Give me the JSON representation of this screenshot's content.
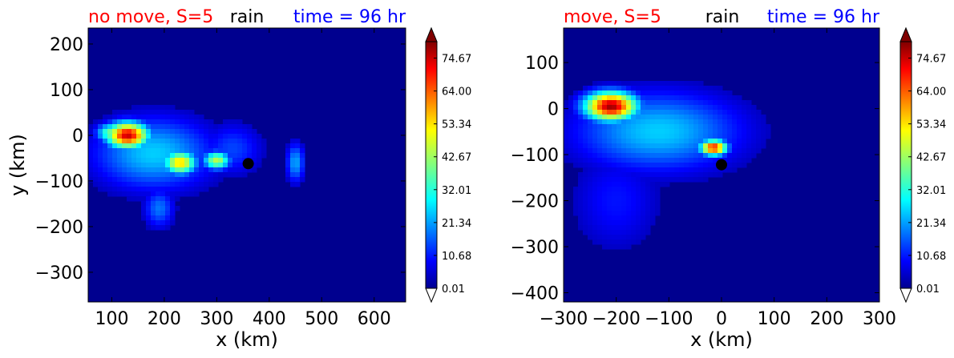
{
  "chart_data": [
    {
      "type": "heatmap",
      "title_left": "no move, S=5",
      "title_center": "rain",
      "title_right": "time = 96 hr",
      "xlabel": "x (km)",
      "ylabel": "y (km)",
      "xlim": [
        55,
        660
      ],
      "ylim": [
        -365,
        235
      ],
      "xticks": [
        100,
        200,
        300,
        400,
        500,
        600
      ],
      "yticks": [
        200,
        100,
        0,
        -100,
        -200,
        -300
      ],
      "ytick_labels": [
        "200",
        "100",
        "0",
        "−100",
        "−200",
        "−300"
      ],
      "marker": {
        "x": 360,
        "y": -62
      },
      "features": [
        {
          "x": 130,
          "y": 0,
          "sx": 28,
          "sy": 20,
          "value": 75
        },
        {
          "x": 100,
          "y": 5,
          "sx": 20,
          "sy": 15,
          "value": 40
        },
        {
          "x": 230,
          "y": -60,
          "sx": 22,
          "sy": 18,
          "value": 55
        },
        {
          "x": 300,
          "y": -55,
          "sx": 18,
          "sy": 14,
          "value": 45
        },
        {
          "x": 180,
          "y": -40,
          "sx": 80,
          "sy": 55,
          "value": 25
        },
        {
          "x": 450,
          "y": -60,
          "sx": 12,
          "sy": 30,
          "value": 22
        },
        {
          "x": 190,
          "y": -160,
          "sx": 20,
          "sy": 30,
          "value": 18
        },
        {
          "x": 330,
          "y": -30,
          "sx": 40,
          "sy": 40,
          "value": 14
        }
      ]
    },
    {
      "type": "heatmap",
      "title_left": "move, S=5",
      "title_center": "rain",
      "title_right": "time = 96 hr",
      "xlabel": "x (km)",
      "ylabel": "",
      "xlim": [
        -300,
        300
      ],
      "ylim": [
        -420,
        175
      ],
      "xticks": [
        -300,
        -200,
        -100,
        0,
        100,
        200,
        300
      ],
      "xtick_labels": [
        "−300",
        "−200",
        "−100",
        "0",
        "100",
        "200",
        "300"
      ],
      "yticks": [
        100,
        0,
        -100,
        -200,
        -300,
        -400
      ],
      "ytick_labels": [
        "100",
        "0",
        "−100",
        "−200",
        "−300",
        "−400"
      ],
      "marker": {
        "x": 0,
        "y": -122
      },
      "features": [
        {
          "x": -210,
          "y": 5,
          "sx": 35,
          "sy": 22,
          "value": 78
        },
        {
          "x": -15,
          "y": -85,
          "sx": 18,
          "sy": 12,
          "value": 70
        },
        {
          "x": -120,
          "y": -50,
          "sx": 110,
          "sy": 60,
          "value": 25
        },
        {
          "x": -60,
          "y": -70,
          "sx": 70,
          "sy": 30,
          "value": 18
        },
        {
          "x": -200,
          "y": -200,
          "sx": 60,
          "sy": 80,
          "value": 10
        }
      ]
    }
  ],
  "colorbar": {
    "tick_labels": [
      "74.67",
      "64.00",
      "53.34",
      "42.67",
      "32.01",
      "21.34",
      "10.68",
      "0.01"
    ],
    "tick_values": [
      74.67,
      64.0,
      53.34,
      42.67,
      32.01,
      21.34,
      10.68,
      0.01
    ],
    "min": 0.01,
    "max": 80,
    "extend": "both"
  },
  "colors": {
    "title_left": "#ff0000",
    "title_right": "#0000ff",
    "marker": "#000000",
    "background_field": "#00008f"
  }
}
